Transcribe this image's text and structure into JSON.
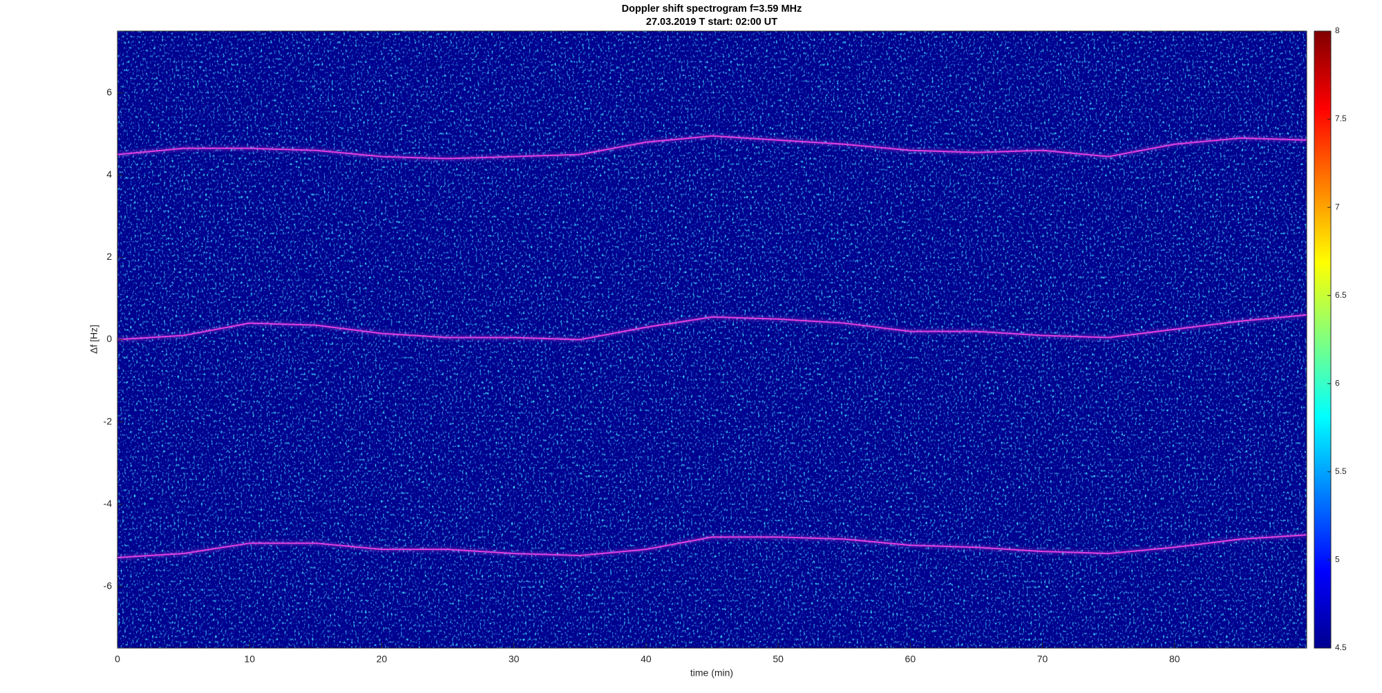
{
  "chart_data": {
    "type": "spectrogram",
    "title": "Doppler shift spectrogram f=3.59 MHz",
    "subtitle": "27.03.2019    T start: 02:00 UT",
    "x_label": "time (min)",
    "y_label": "Δf [Hz]",
    "xlim": [
      0,
      90
    ],
    "xticks": [
      0,
      10,
      20,
      30,
      40,
      50,
      60,
      70,
      80
    ],
    "ylim": [
      -7.5,
      7.5
    ],
    "yticks": [
      -6,
      -4,
      -2,
      0,
      2,
      4,
      6
    ],
    "colormap": "jet",
    "clim": [
      4.5,
      8
    ],
    "cticks": [
      4.5,
      5,
      5.5,
      6,
      6.5,
      7,
      7.5,
      8
    ],
    "x": [
      0,
      5,
      10,
      15,
      20,
      25,
      30,
      35,
      40,
      45,
      50,
      55,
      60,
      65,
      70,
      75,
      80,
      85,
      90
    ],
    "series": [
      {
        "color": "#e040e0",
        "values": [
          4.5,
          4.65,
          4.65,
          4.6,
          4.45,
          4.4,
          4.45,
          4.5,
          4.8,
          4.95,
          4.85,
          4.75,
          4.6,
          4.55,
          4.6,
          4.45,
          4.75,
          4.9,
          4.85
        ]
      },
      {
        "color": "#e040e0",
        "values": [
          0,
          0.1,
          0.4,
          0.35,
          0.15,
          0.05,
          0.05,
          0,
          0.3,
          0.55,
          0.5,
          0.4,
          0.2,
          0.2,
          0.1,
          0.05,
          0.25,
          0.45,
          0.6
        ]
      },
      {
        "color": "#e040e0",
        "values": [
          -5.3,
          -5.2,
          -4.95,
          -4.95,
          -5.1,
          -5.1,
          -5.2,
          -5.25,
          -5.1,
          -4.8,
          -4.8,
          -4.85,
          -5.0,
          -5.05,
          -5.15,
          -5.2,
          -5.05,
          -4.85,
          -4.75
        ]
      }
    ]
  }
}
